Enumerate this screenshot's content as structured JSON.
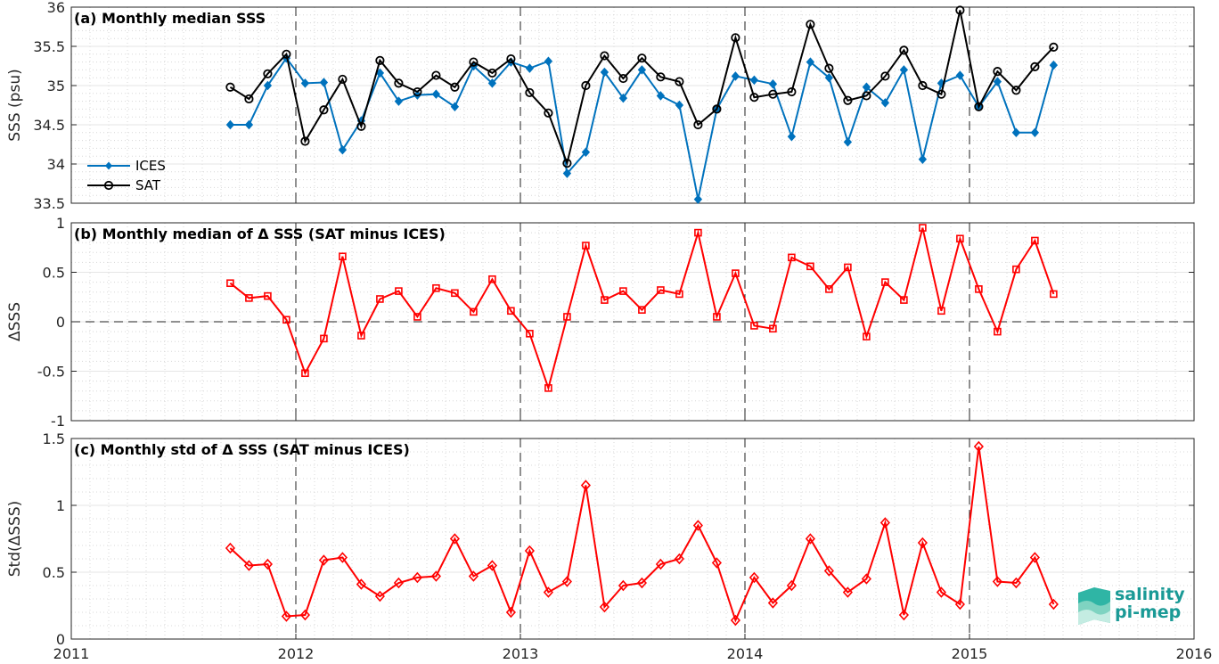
{
  "chart_data": [
    {
      "type": "line",
      "title": "(a) Monthly median SSS",
      "ylabel": "SSS (psu)",
      "xlim": [
        2011,
        2016
      ],
      "ylim": [
        33.5,
        36
      ],
      "xticks": [
        "2011",
        "2012",
        "2013",
        "2014",
        "2015",
        "2016"
      ],
      "yticks": [
        "33.5",
        "34",
        "34.5",
        "35",
        "35.5",
        "36"
      ],
      "legend": "lower-left",
      "series": [
        {
          "name": "ICES",
          "color": "#0072bd",
          "marker": "diamond",
          "values": [
            34.5,
            34.5,
            35.0,
            35.35,
            35.03,
            35.04,
            34.18,
            34.55,
            35.16,
            34.8,
            34.88,
            34.89,
            34.73,
            35.25,
            35.03,
            35.3,
            35.22,
            35.31,
            33.88,
            34.15,
            35.17,
            34.84,
            35.2,
            34.87,
            34.75,
            33.55,
            34.7,
            35.12,
            35.07,
            35.02,
            34.35,
            35.3,
            35.1,
            34.28,
            34.98,
            34.78,
            35.2,
            34.06,
            35.03,
            35.13,
            34.73,
            35.05,
            34.4,
            34.4,
            35.26
          ]
        },
        {
          "name": "SAT",
          "color": "#000000",
          "marker": "circle",
          "values": [
            34.98,
            34.83,
            35.15,
            35.4,
            34.29,
            34.69,
            35.08,
            34.48,
            35.32,
            35.03,
            34.92,
            35.13,
            34.98,
            35.3,
            35.16,
            35.34,
            34.91,
            34.65,
            34.01,
            35.0,
            35.38,
            35.09,
            35.35,
            35.11,
            35.05,
            34.5,
            34.7,
            35.61,
            34.85,
            34.89,
            34.92,
            35.78,
            35.22,
            34.81,
            34.87,
            35.12,
            35.45,
            35.0,
            34.89,
            35.96,
            34.73,
            35.18,
            34.94,
            35.24,
            35.49
          ]
        }
      ]
    },
    {
      "type": "line",
      "title": "(b) Monthly median of Δ SSS (SAT minus ICES)",
      "ylabel": "ΔSSS",
      "xlim": [
        2011,
        2016
      ],
      "ylim": [
        -1,
        1
      ],
      "yticks": [
        "-1",
        "-0.5",
        "0",
        "0.5",
        "1"
      ],
      "series": [
        {
          "name": "",
          "color": "#ff0000",
          "marker": "square",
          "values": [
            0.39,
            0.24,
            0.26,
            0.02,
            -0.52,
            -0.17,
            0.66,
            -0.14,
            0.23,
            0.31,
            0.05,
            0.34,
            0.29,
            0.1,
            0.43,
            0.11,
            -0.12,
            -0.67,
            0.05,
            0.77,
            0.22,
            0.31,
            0.12,
            0.32,
            0.28,
            0.9,
            0.05,
            0.49,
            -0.04,
            -0.07,
            0.65,
            0.56,
            0.33,
            0.55,
            -0.15,
            0.4,
            0.22,
            0.95,
            0.11,
            0.84,
            0.33,
            -0.1,
            0.53,
            0.82,
            0.28
          ]
        }
      ]
    },
    {
      "type": "line",
      "title": "(c) Monthly std of Δ SSS (SAT minus ICES)",
      "ylabel": "Std(ΔSSS)",
      "xlim": [
        2011,
        2016
      ],
      "ylim": [
        0,
        1.5
      ],
      "yticks": [
        "0",
        "0.5",
        "1",
        "1.5"
      ],
      "series": [
        {
          "name": "",
          "color": "#ff0000",
          "marker": "diamond-open",
          "values": [
            0.68,
            0.55,
            0.56,
            0.17,
            0.18,
            0.59,
            0.61,
            0.41,
            0.32,
            0.42,
            0.46,
            0.47,
            0.75,
            0.47,
            0.55,
            0.2,
            0.66,
            0.35,
            0.43,
            1.15,
            0.24,
            0.4,
            0.42,
            0.56,
            0.6,
            0.85,
            0.57,
            0.14,
            0.46,
            0.27,
            0.4,
            0.75,
            0.51,
            0.35,
            0.45,
            0.87,
            0.18,
            0.72,
            0.35,
            0.26,
            1.44,
            0.43,
            0.42,
            0.61,
            0.26
          ]
        }
      ]
    }
  ],
  "x_start": 2011.708,
  "x_step": 0.08333,
  "logo": {
    "line1": "salinity",
    "line2": "pi-mep"
  }
}
